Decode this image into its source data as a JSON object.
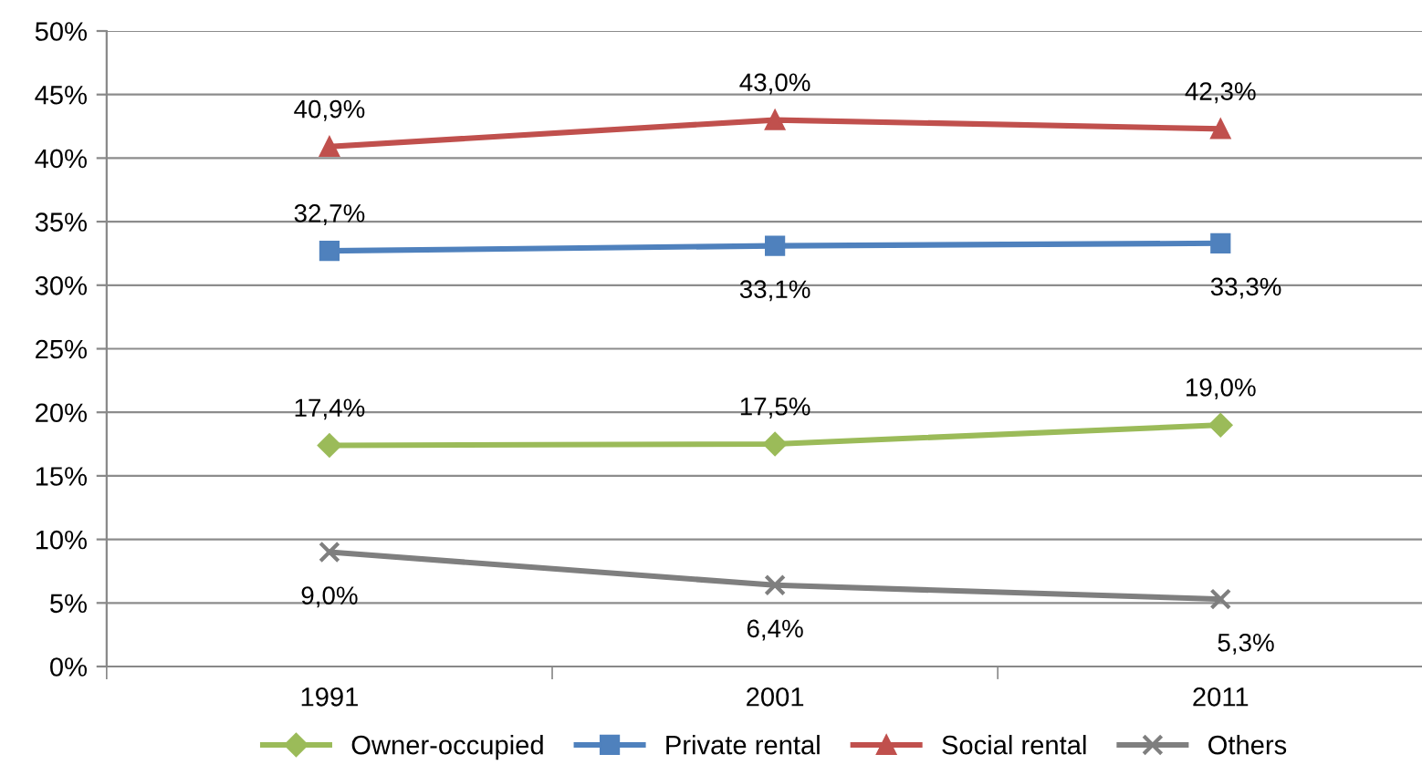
{
  "chart_data": {
    "type": "line",
    "categories": [
      "1991",
      "2001",
      "2011"
    ],
    "series": [
      {
        "name": "Owner-occupied",
        "color": "#9bbb59",
        "marker": "diamond",
        "values": [
          17.4,
          17.5,
          19.0
        ],
        "value_labels": [
          "17,4%",
          "17,5%",
          "19,0%"
        ]
      },
      {
        "name": "Private rental",
        "color": "#4f81bd",
        "marker": "square",
        "values": [
          32.7,
          33.1,
          33.3
        ],
        "value_labels": [
          "32,7%",
          "33,1%",
          "33,3%"
        ]
      },
      {
        "name": "Social rental",
        "color": "#c0504d",
        "marker": "triangle",
        "values": [
          40.9,
          43.0,
          42.3
        ],
        "value_labels": [
          "40,9%",
          "43,0%",
          "42,3%"
        ]
      },
      {
        "name": "Others",
        "color": "#7f7f7f",
        "marker": "cross",
        "values": [
          9.0,
          6.4,
          5.3
        ],
        "value_labels": [
          "9,0%",
          "6,4%",
          "5,3%"
        ]
      }
    ],
    "ylim": [
      0,
      50
    ],
    "yticks": [
      {
        "value": 0,
        "label": "0%"
      },
      {
        "value": 5,
        "label": "5%"
      },
      {
        "value": 10,
        "label": "10%"
      },
      {
        "value": 15,
        "label": "15%"
      },
      {
        "value": 20,
        "label": "20%"
      },
      {
        "value": 25,
        "label": "25%"
      },
      {
        "value": 30,
        "label": "30%"
      },
      {
        "value": 35,
        "label": "35%"
      },
      {
        "value": 40,
        "label": "40%"
      },
      {
        "value": 45,
        "label": "45%"
      },
      {
        "value": 50,
        "label": "50%"
      }
    ],
    "grid": "y",
    "legend": "bottom",
    "line_style": "solid"
  }
}
